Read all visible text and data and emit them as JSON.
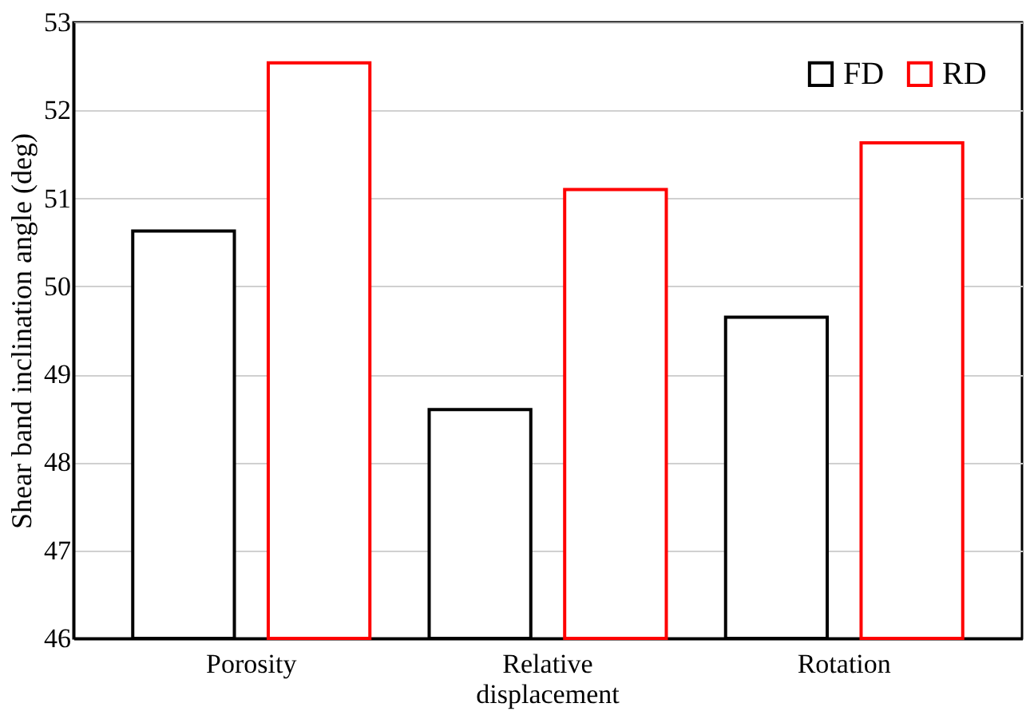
{
  "chart_data": {
    "type": "bar",
    "ylabel": "Shear band inclination angle (deg)",
    "categories": [
      "Porosity",
      "Relative displacement",
      "Rotation"
    ],
    "series": [
      {
        "name": "FD",
        "color": "#000000",
        "values": [
          50.63,
          48.6,
          49.65
        ]
      },
      {
        "name": "RD",
        "color": "#ff0000",
        "values": [
          52.54,
          51.1,
          51.63
        ]
      }
    ],
    "ylim": [
      46,
      53
    ],
    "yticks": [
      46,
      47,
      48,
      49,
      50,
      51,
      52,
      53
    ],
    "grid": "y",
    "legend": "top right"
  }
}
